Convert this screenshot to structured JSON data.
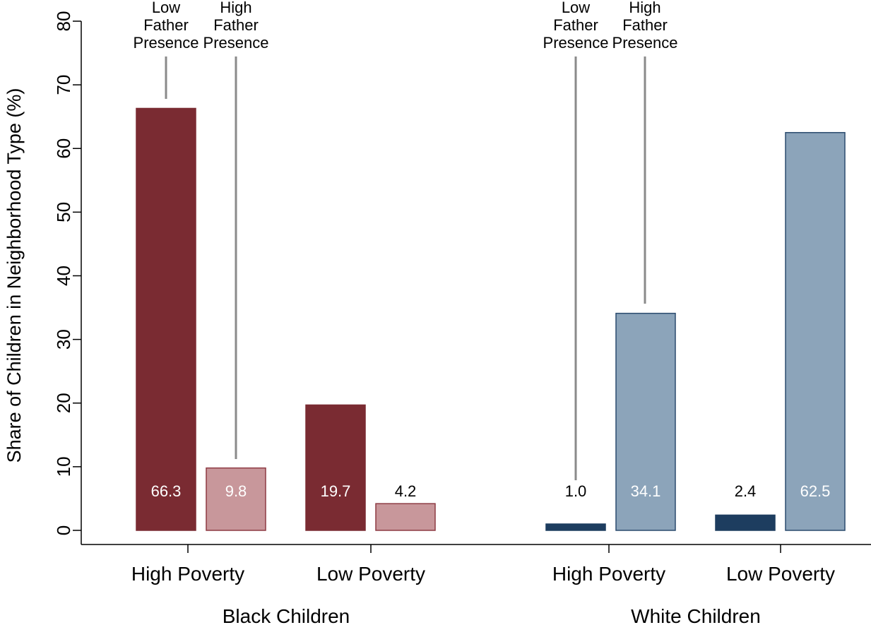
{
  "chart_data": {
    "type": "bar",
    "title": "",
    "ylabel": "Share of Children in Neighborhood Type (%)",
    "xlabel": "",
    "ylim": [
      0,
      80
    ],
    "yticks": [
      0,
      10,
      20,
      30,
      40,
      50,
      60,
      70,
      80
    ],
    "grid": false,
    "groups": [
      {
        "name": "Black Children",
        "categories": [
          "High Poverty",
          "Low Poverty"
        ]
      },
      {
        "name": "White Children",
        "categories": [
          "High Poverty",
          "Low Poverty"
        ]
      }
    ],
    "series_names": [
      "Low Father Presence",
      "High Father Presence"
    ],
    "annotation_lines": {
      "low": [
        "Low",
        "Father",
        "Presence"
      ],
      "high": [
        "High",
        "Father",
        "Presence"
      ]
    },
    "bars": [
      {
        "group": "Black Children",
        "category": "High Poverty",
        "series": "Low Father Presence",
        "value": 66.3,
        "label": "66.3"
      },
      {
        "group": "Black Children",
        "category": "High Poverty",
        "series": "High Father Presence",
        "value": 9.8,
        "label": "9.8"
      },
      {
        "group": "Black Children",
        "category": "Low Poverty",
        "series": "Low Father Presence",
        "value": 19.7,
        "label": "19.7"
      },
      {
        "group": "Black Children",
        "category": "Low Poverty",
        "series": "High Father Presence",
        "value": 4.2,
        "label": "4.2"
      },
      {
        "group": "White Children",
        "category": "High Poverty",
        "series": "Low Father Presence",
        "value": 1.0,
        "label": "1.0"
      },
      {
        "group": "White Children",
        "category": "High Poverty",
        "series": "High Father Presence",
        "value": 34.1,
        "label": "34.1"
      },
      {
        "group": "White Children",
        "category": "Low Poverty",
        "series": "Low Father Presence",
        "value": 2.4,
        "label": "2.4"
      },
      {
        "group": "White Children",
        "category": "Low Poverty",
        "series": "High Father Presence",
        "value": 62.5,
        "label": "62.5"
      }
    ],
    "colors": {
      "black_low": "#7a2b32",
      "black_high": "#c8979b",
      "black_high_border": "#8e3a43",
      "white_low": "#1d3d5f",
      "white_high": "#8ca4ba",
      "white_high_border": "#2b4b6e"
    }
  }
}
